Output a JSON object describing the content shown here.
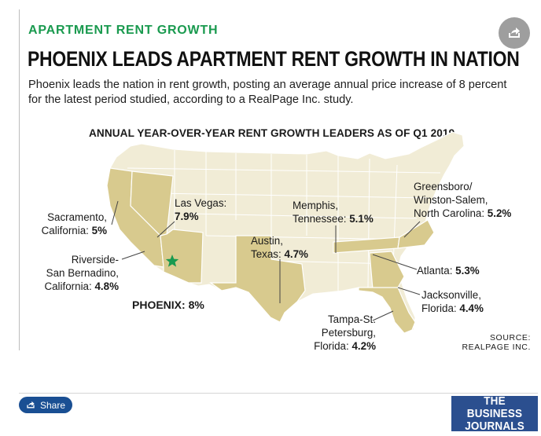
{
  "article": {
    "kicker": "APARTMENT RENT GROWTH",
    "headline": "PHOENIX LEADS APARTMENT RENT GROWTH IN NATION",
    "dek": "Phoenix leads the nation in rent growth, posting an average annual price increase of 8 percent for the latest period studied, according to a RealPage Inc. study."
  },
  "map": {
    "title": "ANNUAL YEAR-OVER-YEAR RENT GROWTH LEADERS AS OF Q1 2019",
    "colors": {
      "highlight": "#d8ca8e",
      "base": "#f1ecd6",
      "border": "#ffffff",
      "star": "#1a9a4f"
    },
    "cities": [
      {
        "line1": "Sacramento,",
        "line2": "California:",
        "value": "5%"
      },
      {
        "line1": "Las Vegas:",
        "value": "7.9%"
      },
      {
        "line1": "Riverside-",
        "line2": "San Bernadino,",
        "line3": "California:",
        "value": "4.8%"
      },
      {
        "name": "PHOENIX:",
        "value": "8%"
      },
      {
        "line1": "Austin,",
        "line2": "Texas:",
        "value": "4.7%"
      },
      {
        "line1": "Memphis,",
        "line2": "Tennessee:",
        "value": "5.1%"
      },
      {
        "line1": "Greensboro/",
        "line2": "Winston-Salem,",
        "line3": "North Carolina:",
        "value": "5.2%"
      },
      {
        "line1": "Atlanta:",
        "value": "5.3%"
      },
      {
        "line1": "Jacksonville,",
        "line2": "Florida:",
        "value": "4.4%"
      },
      {
        "line1": "Tampa-St.",
        "line2": "Petersburg,",
        "line3": "Florida:",
        "value": "4.2%"
      }
    ],
    "source_line1": "SOURCE:",
    "source_line2": "REALPAGE INC."
  },
  "footer": {
    "share_label": "Share",
    "logo_line1": "THE BUSINESS",
    "logo_line2": "JOURNALS"
  }
}
